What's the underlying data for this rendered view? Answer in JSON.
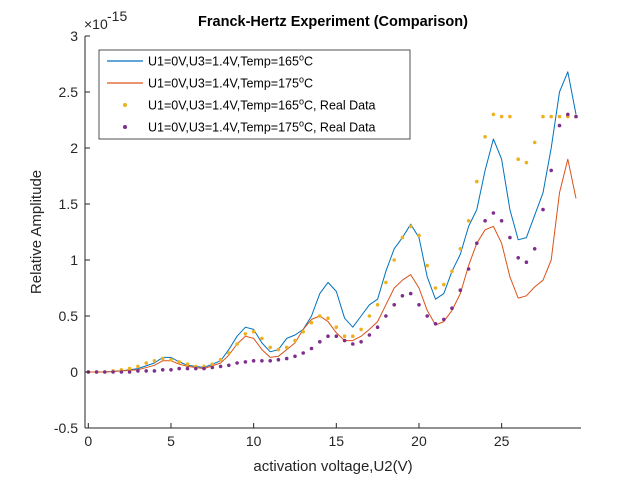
{
  "chart_data": {
    "type": "line",
    "title": "Franck-Hertz Experiment (Comparison)",
    "xlabel": "activation voltage,U2(V)",
    "ylabel": "Relative Amplitude",
    "xlim": [
      -0.2,
      29.8
    ],
    "ylim": [
      -0.5,
      3
    ],
    "y_exponent_label": "×10",
    "y_exponent": "-15",
    "xticks": [
      0,
      5,
      10,
      15,
      20,
      25
    ],
    "yticks": [
      -0.5,
      0,
      0.5,
      1,
      1.5,
      2,
      2.5,
      3
    ],
    "ytick_labels": [
      "-0.5",
      "0",
      "0.5",
      "1",
      "1.5",
      "2",
      "2.5",
      "3"
    ],
    "grid": false,
    "legend_position": "top-left",
    "series": [
      {
        "name_prefix": "U1=0V,U3=1.4V,Temp=165",
        "name_sup": "o",
        "name_suffix": "C",
        "style": "line",
        "color": "#0072BD",
        "x": [
          0,
          1,
          2,
          3,
          4,
          4.5,
          5,
          5.5,
          6,
          7,
          8,
          8.5,
          9,
          9.5,
          10,
          10.5,
          11,
          11.5,
          12,
          12.5,
          13,
          13.5,
          14,
          14.5,
          15,
          15.5,
          16,
          16.5,
          17,
          17.5,
          18,
          18.5,
          19,
          19.5,
          20,
          20.5,
          21,
          21.5,
          22,
          22.5,
          23,
          23.5,
          24,
          24.5,
          25,
          25.5,
          26,
          26.5,
          27,
          27.5,
          28,
          28.5,
          29,
          29.5
        ],
        "y": [
          0,
          0,
          0.01,
          0.03,
          0.08,
          0.13,
          0.13,
          0.09,
          0.06,
          0.04,
          0.1,
          0.2,
          0.32,
          0.4,
          0.38,
          0.26,
          0.18,
          0.2,
          0.3,
          0.33,
          0.38,
          0.5,
          0.7,
          0.8,
          0.72,
          0.48,
          0.4,
          0.5,
          0.6,
          0.65,
          0.9,
          1.1,
          1.2,
          1.32,
          1.2,
          0.85,
          0.65,
          0.7,
          0.9,
          1.05,
          1.3,
          1.45,
          1.8,
          2.08,
          1.9,
          1.45,
          1.18,
          1.2,
          1.4,
          1.6,
          2.0,
          2.5,
          2.68,
          2.3
        ]
      },
      {
        "name_prefix": "U1=0V,U3=1.4V,Temp=175",
        "name_sup": "o",
        "name_suffix": "C",
        "style": "line",
        "color": "#D95319",
        "x": [
          0,
          1,
          2,
          3,
          4,
          4.5,
          5,
          5.5,
          6,
          7,
          8,
          8.5,
          9,
          9.5,
          10,
          10.5,
          11,
          11.5,
          12,
          12.5,
          13,
          13.5,
          14,
          14.5,
          15,
          15.5,
          16,
          16.5,
          17,
          17.5,
          18,
          18.5,
          19,
          19.5,
          20,
          20.5,
          21,
          21.5,
          22,
          22.5,
          23,
          23.5,
          24,
          24.5,
          25,
          25.5,
          26,
          26.5,
          27,
          27.5,
          28,
          28.5,
          29,
          29.5
        ],
        "y": [
          0,
          0,
          0.01,
          0.02,
          0.06,
          0.1,
          0.1,
          0.07,
          0.05,
          0.03,
          0.08,
          0.15,
          0.25,
          0.32,
          0.3,
          0.2,
          0.13,
          0.14,
          0.2,
          0.26,
          0.38,
          0.47,
          0.5,
          0.45,
          0.35,
          0.28,
          0.28,
          0.32,
          0.38,
          0.45,
          0.6,
          0.75,
          0.82,
          0.87,
          0.75,
          0.55,
          0.42,
          0.45,
          0.55,
          0.7,
          0.95,
          1.15,
          1.27,
          1.3,
          1.15,
          0.85,
          0.66,
          0.68,
          0.76,
          0.82,
          1.0,
          1.6,
          1.9,
          1.55
        ]
      },
      {
        "name_prefix": "U1=0V,U3=1.4V,Temp=165",
        "name_sup": "o",
        "name_suffix": "C, Real Data",
        "style": "dots",
        "color": "#EDB120",
        "x": [
          0,
          0.5,
          1,
          1.5,
          2,
          2.5,
          3,
          3.5,
          4,
          4.5,
          5,
          5.5,
          6,
          6.5,
          7,
          7.5,
          8,
          8.5,
          9,
          9.5,
          10,
          10.5,
          11,
          11.5,
          12,
          12.5,
          13,
          13.5,
          14,
          14.5,
          15,
          15.5,
          16,
          16.5,
          17,
          17.5,
          18,
          18.5,
          19,
          19.5,
          20,
          20.5,
          21,
          21.5,
          22,
          22.5,
          23,
          23.5,
          24,
          24.5,
          25,
          25.5,
          26,
          26.5,
          27,
          27.5,
          28,
          28.5,
          29,
          29.5
        ],
        "y": [
          0,
          0,
          0,
          0.01,
          0.02,
          0.03,
          0.05,
          0.08,
          0.1,
          0.12,
          0.11,
          0.09,
          0.07,
          0.05,
          0.05,
          0.07,
          0.11,
          0.17,
          0.25,
          0.34,
          0.36,
          0.3,
          0.22,
          0.2,
          0.22,
          0.28,
          0.36,
          0.44,
          0.5,
          0.48,
          0.4,
          0.32,
          0.32,
          0.38,
          0.5,
          0.6,
          0.8,
          1.0,
          1.2,
          1.3,
          1.22,
          0.95,
          0.75,
          0.78,
          0.9,
          1.1,
          1.35,
          1.7,
          2.1,
          2.3,
          2.28,
          2.28,
          1.9,
          1.87,
          2.05,
          2.28,
          2.28,
          2.28,
          2.28,
          2.28
        ]
      },
      {
        "name_prefix": "U1=0V,U3=1.4V,Temp=175",
        "name_sup": "o",
        "name_suffix": "C, Real Data",
        "style": "dots",
        "color": "#7E2F8E",
        "x": [
          0,
          0.5,
          1,
          1.5,
          2,
          2.5,
          3,
          3.5,
          4,
          4.5,
          5,
          5.5,
          6,
          6.5,
          7,
          7.5,
          8,
          8.5,
          9,
          9.5,
          10,
          10.5,
          11,
          11.5,
          12,
          12.5,
          13,
          13.5,
          14,
          14.5,
          15,
          15.5,
          16,
          16.5,
          17,
          17.5,
          18,
          18.5,
          19,
          19.5,
          20,
          20.5,
          21,
          21.5,
          22,
          22.5,
          23,
          23.5,
          24,
          24.5,
          25,
          25.5,
          26,
          26.5,
          27,
          27.5,
          28,
          28.5,
          29,
          29.5
        ],
        "y": [
          0,
          0,
          0,
          0,
          0,
          0,
          0.01,
          0.01,
          0.01,
          0.02,
          0.02,
          0.03,
          0.03,
          0.03,
          0.03,
          0.04,
          0.05,
          0.06,
          0.08,
          0.09,
          0.1,
          0.1,
          0.1,
          0.11,
          0.12,
          0.14,
          0.17,
          0.21,
          0.27,
          0.32,
          0.32,
          0.28,
          0.25,
          0.27,
          0.33,
          0.4,
          0.5,
          0.6,
          0.68,
          0.7,
          0.6,
          0.5,
          0.43,
          0.47,
          0.57,
          0.73,
          0.92,
          1.15,
          1.35,
          1.42,
          1.35,
          1.2,
          1.02,
          0.98,
          1.1,
          1.45,
          1.8,
          2.2,
          2.3,
          2.28
        ]
      }
    ]
  }
}
